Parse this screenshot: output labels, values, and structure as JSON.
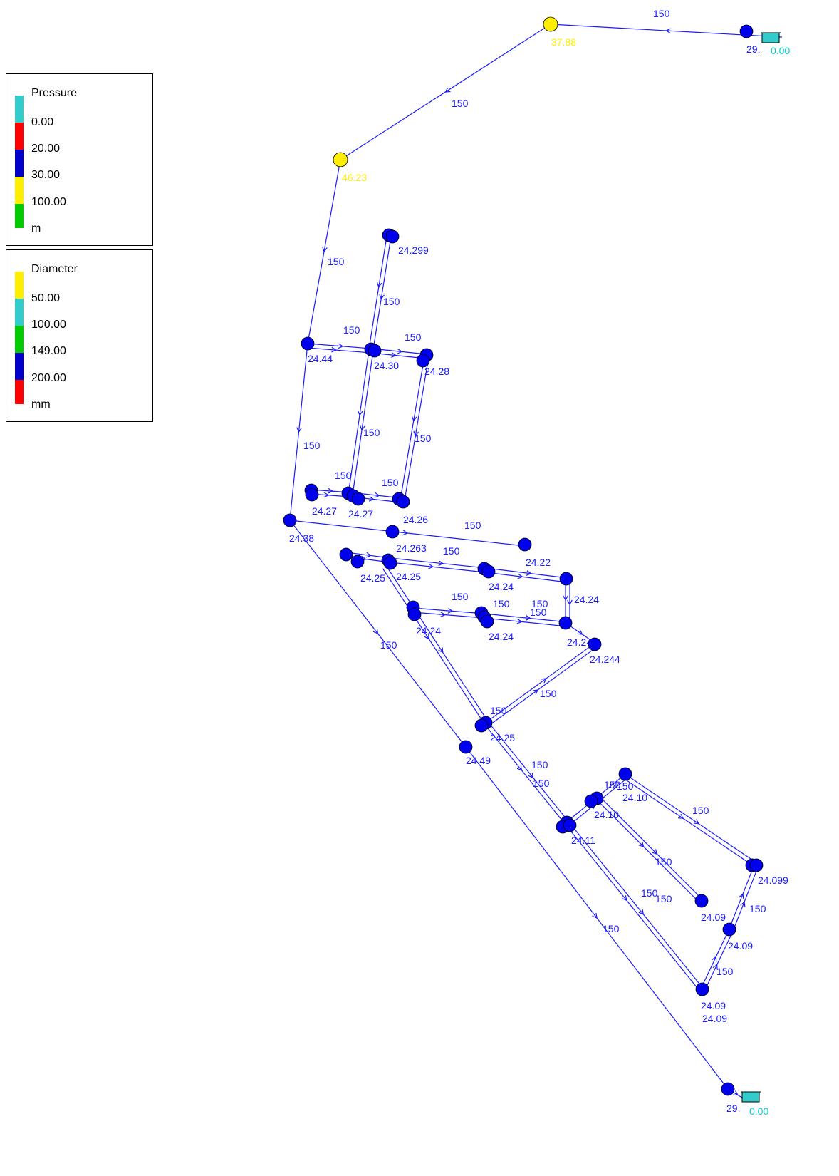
{
  "legends": {
    "pressure": {
      "title": "Pressure",
      "entries": [
        "0.00",
        "20.00",
        "30.00",
        "100.00"
      ],
      "unit": "m",
      "colors": [
        "#33cccc",
        "#ff0000",
        "#0000cc",
        "#ffee00",
        "#00cc00"
      ]
    },
    "diameter": {
      "title": "Diameter",
      "entries": [
        "50.00",
        "100.00",
        "149.00",
        "200.00"
      ],
      "unit": "mm",
      "colors": [
        "#ffee00",
        "#33cccc",
        "#00cc00",
        "#0000cc",
        "#ff0000"
      ]
    }
  },
  "network": {
    "link_color": "#1a1aff",
    "node_color": "#0000ee",
    "high_node_color": "#ffee00",
    "tank_color": "#33cccc",
    "high_label_color": "#ffee00",
    "reservoir_label_color": "#00cccc",
    "reservoir_labels": [
      "0.00",
      "0.00"
    ],
    "reservoir_node_labels": [
      "29.",
      "29."
    ],
    "high_pressure_labels": [
      "37.88",
      "46.23"
    ],
    "node_pressure_labels": [
      "24.299",
      "24.44",
      "24.30",
      "24.28",
      "24.27",
      "24.27",
      "24.26",
      "24.38",
      "24.263",
      "24.22",
      "24.25",
      "24.25",
      "24.24",
      "24.24",
      "24.24",
      "24.24",
      "24.24",
      "24.244",
      "24.25",
      "24.49",
      "24.10",
      "24.10",
      "24.11",
      "24.099",
      "24.09",
      "24.09",
      "24.09",
      "24.09"
    ],
    "pipe_diameter_labels": [
      "150",
      "150",
      "150",
      "150",
      "150",
      "150",
      "150",
      "150",
      "150",
      "150",
      "150",
      "150",
      "150",
      "150",
      "150",
      "150",
      "150",
      "150",
      "150",
      "150",
      "150",
      "150",
      "150",
      "150",
      "150",
      "150",
      "150",
      "150",
      "150",
      "150",
      "150"
    ]
  }
}
